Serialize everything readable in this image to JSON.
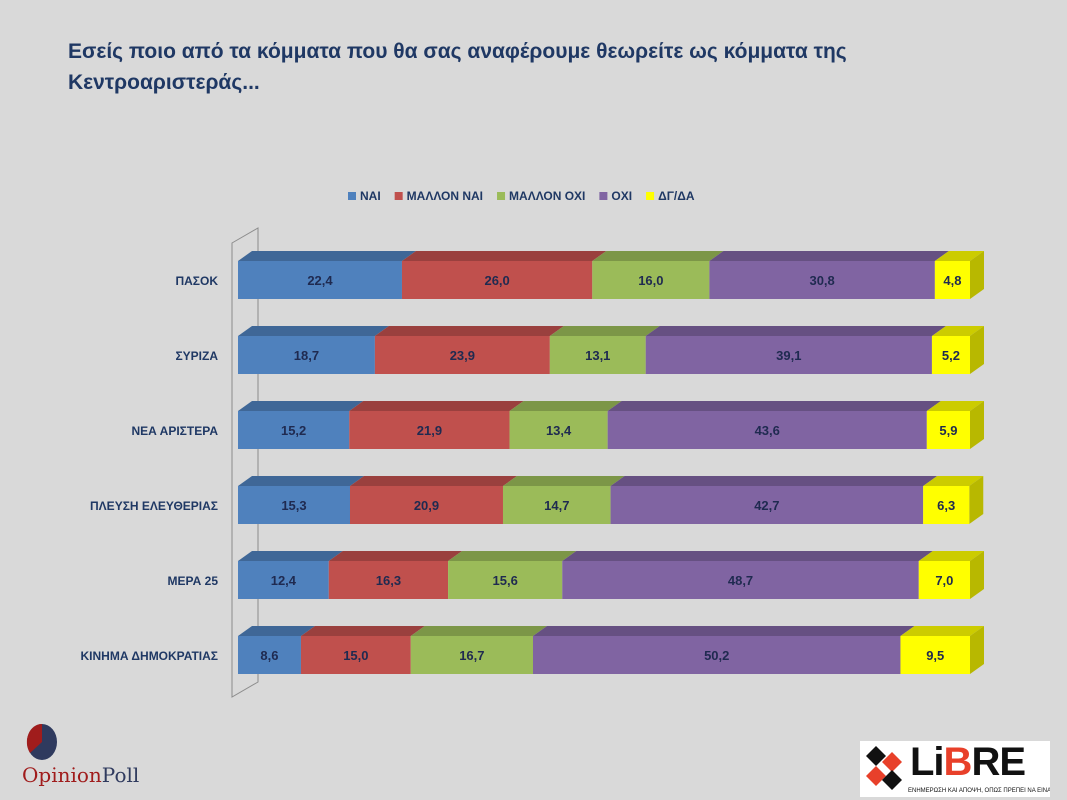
{
  "title": "Εσείς ποιο από τα κόμματα που θα σας αναφέρουμε θεωρείτε ως κόμματα της Κεντροαριστεράς...",
  "chart_data": {
    "type": "bar",
    "orientation": "horizontal",
    "stacked": true,
    "style": "3d",
    "legend_position": "top",
    "grid": false,
    "xlim": [
      0,
      100
    ],
    "categories": [
      "ΠΑΣΟΚ",
      "ΣΥΡΙΖΑ",
      "ΝΕΑ ΑΡΙΣΤΕΡΑ",
      "ΠΛΕΥΣΗ ΕΛΕΥΘΕΡΙΑΣ",
      "ΜΕΡΑ 25",
      "ΚΙΝΗΜΑ ΔΗΜΟΚΡΑΤΙΑΣ"
    ],
    "series": [
      {
        "name": "ΝΑΙ",
        "color": "#4f81bd",
        "values": [
          22.4,
          18.7,
          15.2,
          15.3,
          12.4,
          8.6
        ],
        "labels": [
          "22,4",
          "18,7",
          "15,2",
          "15,3",
          "12,4",
          "8,6"
        ]
      },
      {
        "name": "ΜΑΛΛΟΝ ΝΑΙ",
        "color": "#c0504d",
        "values": [
          26.0,
          23.9,
          21.9,
          20.9,
          16.3,
          15.0
        ],
        "labels": [
          "26,0",
          "23,9",
          "21,9",
          "20,9",
          "16,3",
          "15,0"
        ]
      },
      {
        "name": "ΜΑΛΛΟΝ ΟΧΙ",
        "color": "#9bbb59",
        "values": [
          16.0,
          13.1,
          13.4,
          14.7,
          15.6,
          16.7
        ],
        "labels": [
          "16,0",
          "13,1",
          "13,4",
          "14,7",
          "15,6",
          "16,7"
        ]
      },
      {
        "name": "ΟΧΙ",
        "color": "#8064a2",
        "values": [
          30.8,
          39.1,
          43.6,
          42.7,
          48.7,
          50.2
        ],
        "labels": [
          "30,8",
          "39,1",
          "43,6",
          "42,7",
          "48,7",
          "50,2"
        ]
      },
      {
        "name": "ΔΓ/ΔΑ",
        "color": "#ffff00",
        "values": [
          4.8,
          5.2,
          5.9,
          6.3,
          7.0,
          9.5
        ],
        "labels": [
          "4,8",
          "5,2",
          "5,9",
          "6,3",
          "7,0",
          "9,5"
        ]
      }
    ]
  },
  "logos": {
    "left": "OpinionPoll",
    "left_a": "Opinion",
    "left_b": "Poll",
    "right": "LiBRE",
    "right_tagline": "ΕΝΗΜΕΡΩΣΗ ΚΑΙ ΑΠΟΨΗ, ΟΠΩΣ ΠΡΕΠΕΙ ΝΑ ΕΙΝΑΙ..."
  }
}
